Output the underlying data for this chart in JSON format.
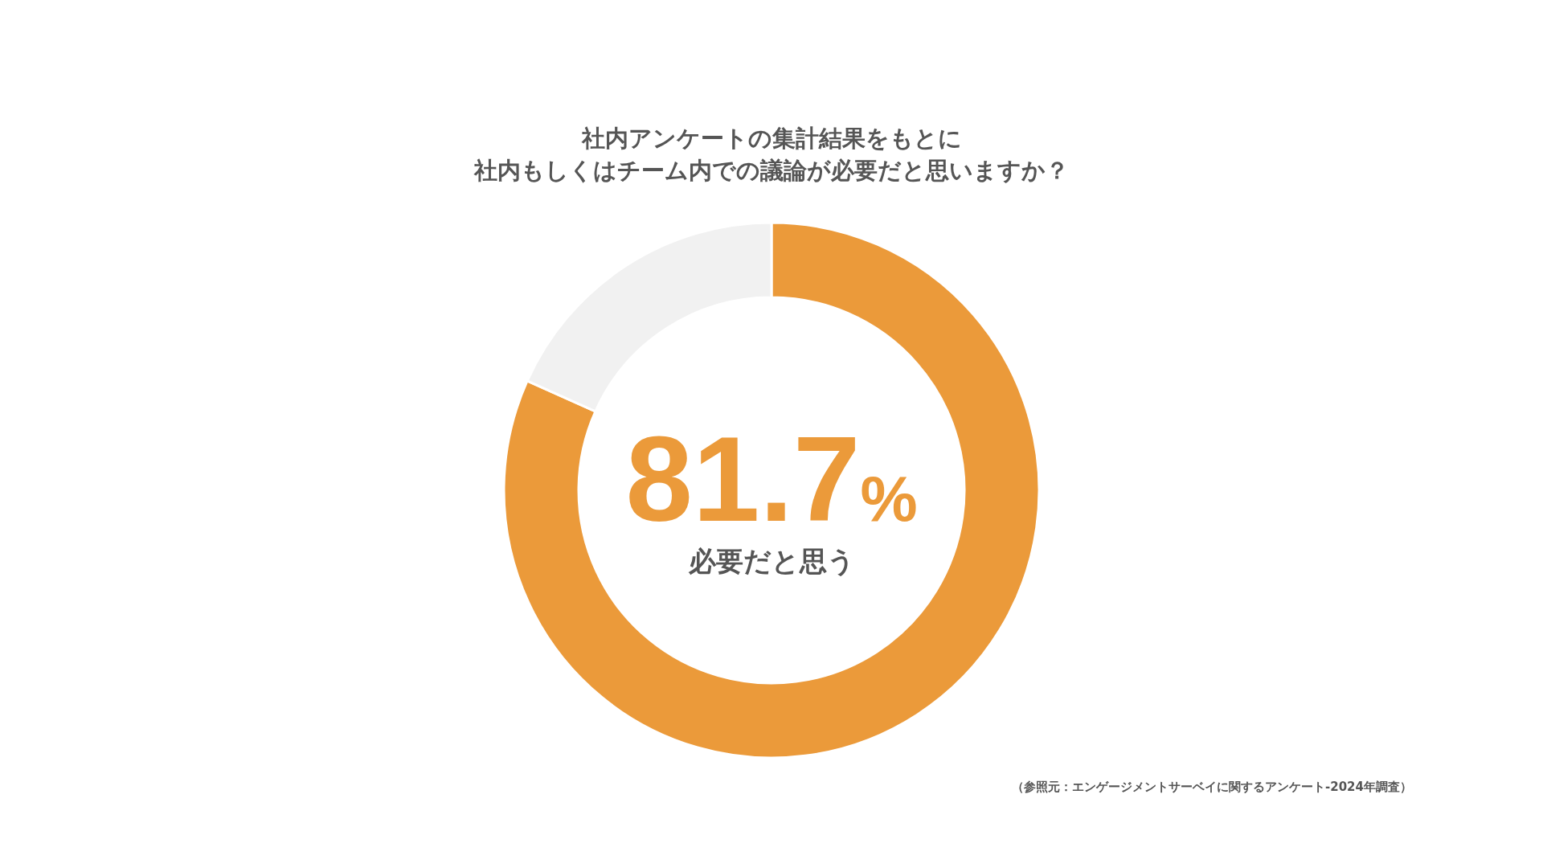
{
  "chart_data": {
    "type": "donut",
    "title": "社内アンケートの集計結果をもとに",
    "subtitle": "社内もしくはチーム内での議論が必要だと思いますか？",
    "categories": [
      "必要だと思う",
      null
    ],
    "values": [
      81.7,
      18.3
    ],
    "colors": [
      "#eb9a3a",
      "#f1f1f1"
    ],
    "value_labels": [
      "81.7%",
      null
    ],
    "annotations": [
      "（参照元：エンゲージメントサーベイに関するアンケート-2024年調査）"
    ]
  }
}
